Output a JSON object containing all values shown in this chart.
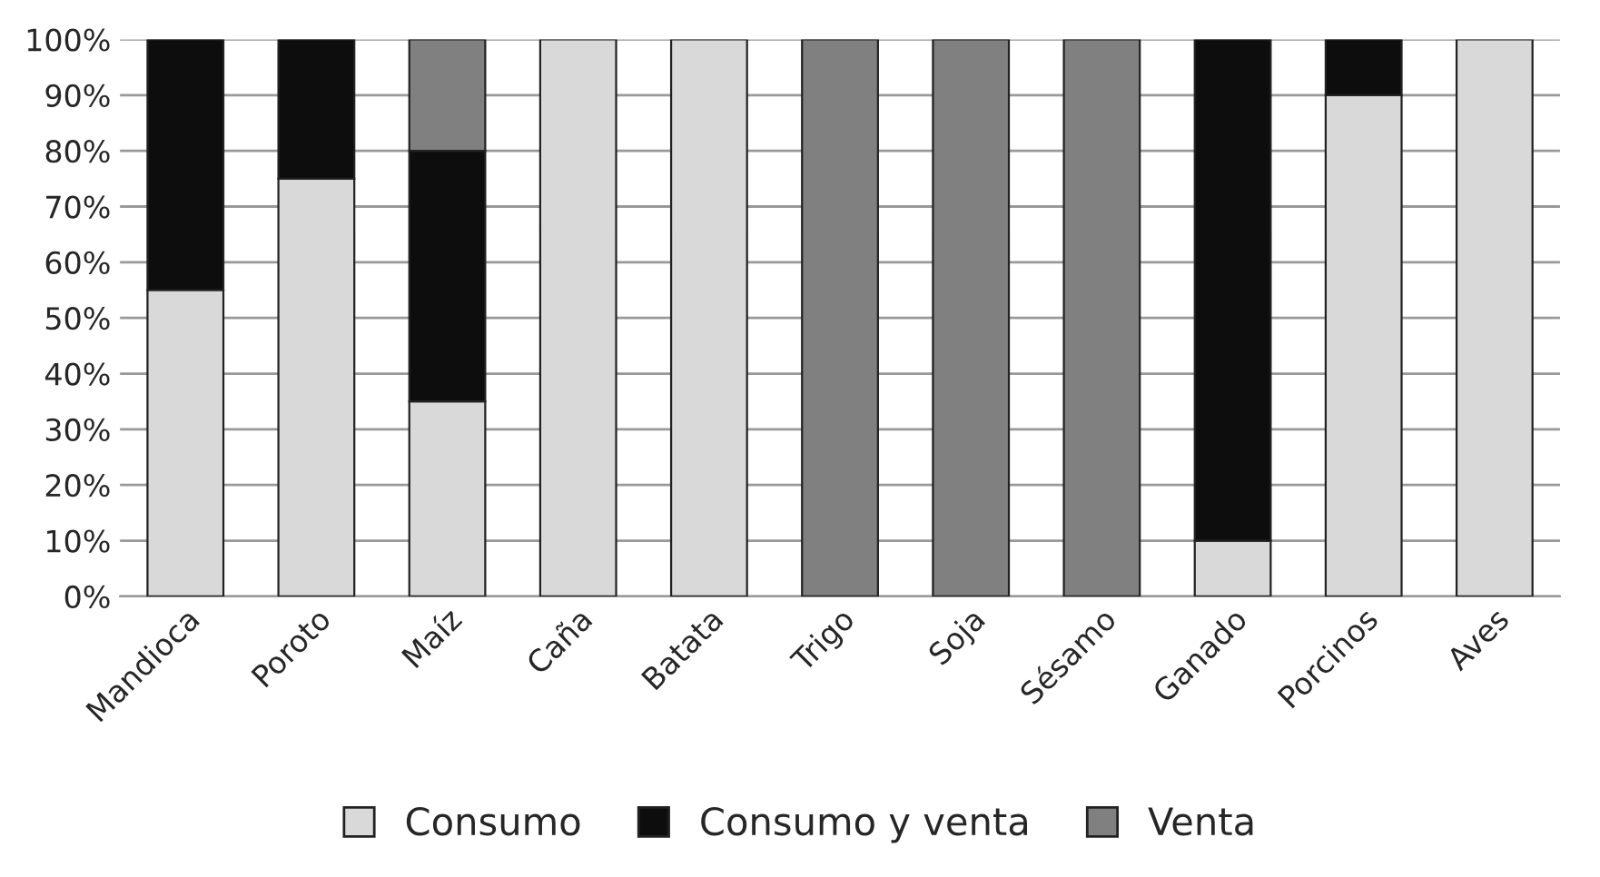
{
  "chart_data": {
    "type": "bar",
    "stacked": true,
    "categories": [
      "Mandioca",
      "Poroto",
      "Maíz",
      "Caña",
      "Batata",
      "Trigo",
      "Soja",
      "Sésamo",
      "Ganado",
      "Porcinos",
      "Aves"
    ],
    "series": [
      {
        "name": "Consumo",
        "color": "#d9d9d9",
        "values": [
          55,
          75,
          35,
          100,
          100,
          0,
          0,
          0,
          10,
          90,
          100
        ]
      },
      {
        "name": "Consumo y venta",
        "color": "#0d0d0d",
        "values": [
          45,
          25,
          45,
          0,
          0,
          0,
          0,
          0,
          90,
          10,
          0
        ]
      },
      {
        "name": "Venta",
        "color": "#808080",
        "values": [
          0,
          0,
          20,
          0,
          0,
          100,
          100,
          100,
          0,
          0,
          0
        ]
      }
    ],
    "ylim": [
      0,
      100
    ],
    "yticks": [
      {
        "value": 0,
        "label": "0%"
      },
      {
        "value": 10,
        "label": "10%"
      },
      {
        "value": 20,
        "label": "20%"
      },
      {
        "value": 30,
        "label": "30%"
      },
      {
        "value": 40,
        "label": "40%"
      },
      {
        "value": 50,
        "label": "50%"
      },
      {
        "value": 60,
        "label": "60%"
      },
      {
        "value": 70,
        "label": "70%"
      },
      {
        "value": 80,
        "label": "80%"
      },
      {
        "value": 90,
        "label": "90%"
      },
      {
        "value": 100,
        "label": "100%"
      }
    ],
    "grid": "y",
    "legend": "bottom"
  }
}
